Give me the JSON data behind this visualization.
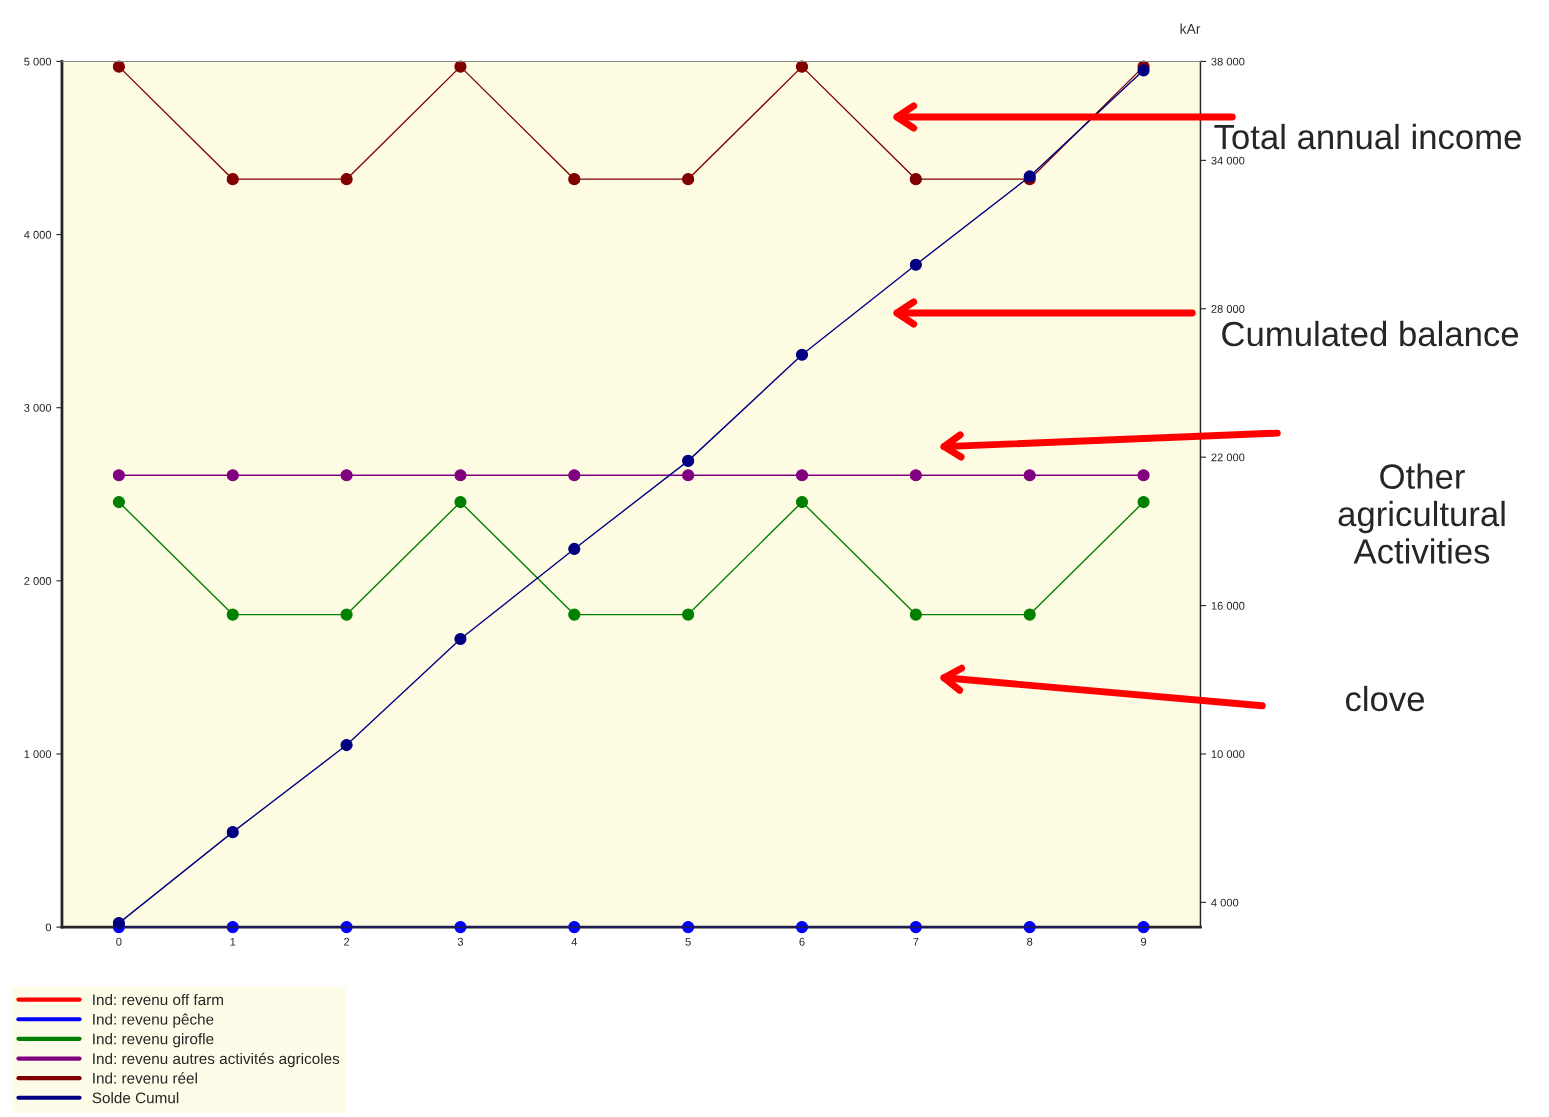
{
  "chart_data": {
    "type": "line",
    "x": [
      0,
      1,
      2,
      3,
      4,
      5,
      6,
      7,
      8,
      9
    ],
    "xlim": [
      -0.5,
      9.5
    ],
    "xticks": [
      0,
      1,
      2,
      3,
      4,
      5,
      6,
      7,
      8,
      9
    ],
    "ylim": [
      0,
      5000
    ],
    "yticks": [
      {
        "value": 0,
        "label": "0"
      },
      {
        "value": 1000,
        "label": "1 000"
      },
      {
        "value": 2000,
        "label": "2 000"
      },
      {
        "value": 3000,
        "label": "3 000"
      },
      {
        "value": 4000,
        "label": "4 000"
      },
      {
        "value": 5000,
        "label": "5 000"
      }
    ],
    "y2lim": [
      3000,
      38000
    ],
    "y2ticks": [
      {
        "value": 4000,
        "label": "4 000"
      },
      {
        "value": 10000,
        "label": "10 000"
      },
      {
        "value": 16000,
        "label": "16 000"
      },
      {
        "value": 22000,
        "label": "22 000"
      },
      {
        "value": 28000,
        "label": "28 000"
      },
      {
        "value": 34000,
        "label": "34 000"
      },
      {
        "value": 38000,
        "label": "38 000"
      }
    ],
    "y2label": "kAr",
    "series": [
      {
        "name": "Ind: revenu off farm",
        "color": "#ff0000",
        "values": [
          null,
          null,
          null,
          null,
          null,
          null,
          null,
          null,
          null,
          null
        ]
      },
      {
        "name": "Ind: revenu pêche",
        "color": "#0000ff",
        "values": [
          0,
          0,
          0,
          0,
          0,
          0,
          0,
          0,
          0,
          0
        ]
      },
      {
        "name": "Ind: revenu girofle",
        "color": "#008000",
        "values": [
          2455,
          1805,
          1805,
          2455,
          1805,
          1805,
          2455,
          1805,
          1805,
          2455
        ]
      },
      {
        "name": "Ind: revenu autres activités agricoles",
        "color": "#800080",
        "values": [
          2610,
          2610,
          2610,
          2610,
          2610,
          2610,
          2610,
          2610,
          2610,
          2610
        ]
      },
      {
        "name": "Ind: revenu réel",
        "color": "#800000",
        "values": [
          4970,
          4320,
          4320,
          4970,
          4320,
          4320,
          4970,
          4320,
          4320,
          4970
        ]
      },
      {
        "name": "Solde Cumul",
        "color": "#000080",
        "axis": "y2",
        "values": [
          3160,
          6840,
          10360,
          14650,
          18290,
          21850,
          26140,
          29780,
          33350,
          37640
        ]
      }
    ],
    "annotations": [
      "Total annual income",
      "Cumulated balance",
      "Other agricultural Activities",
      "clove"
    ],
    "marker": "circle",
    "line_style": "solid",
    "grid": false,
    "legend": "bottom"
  }
}
